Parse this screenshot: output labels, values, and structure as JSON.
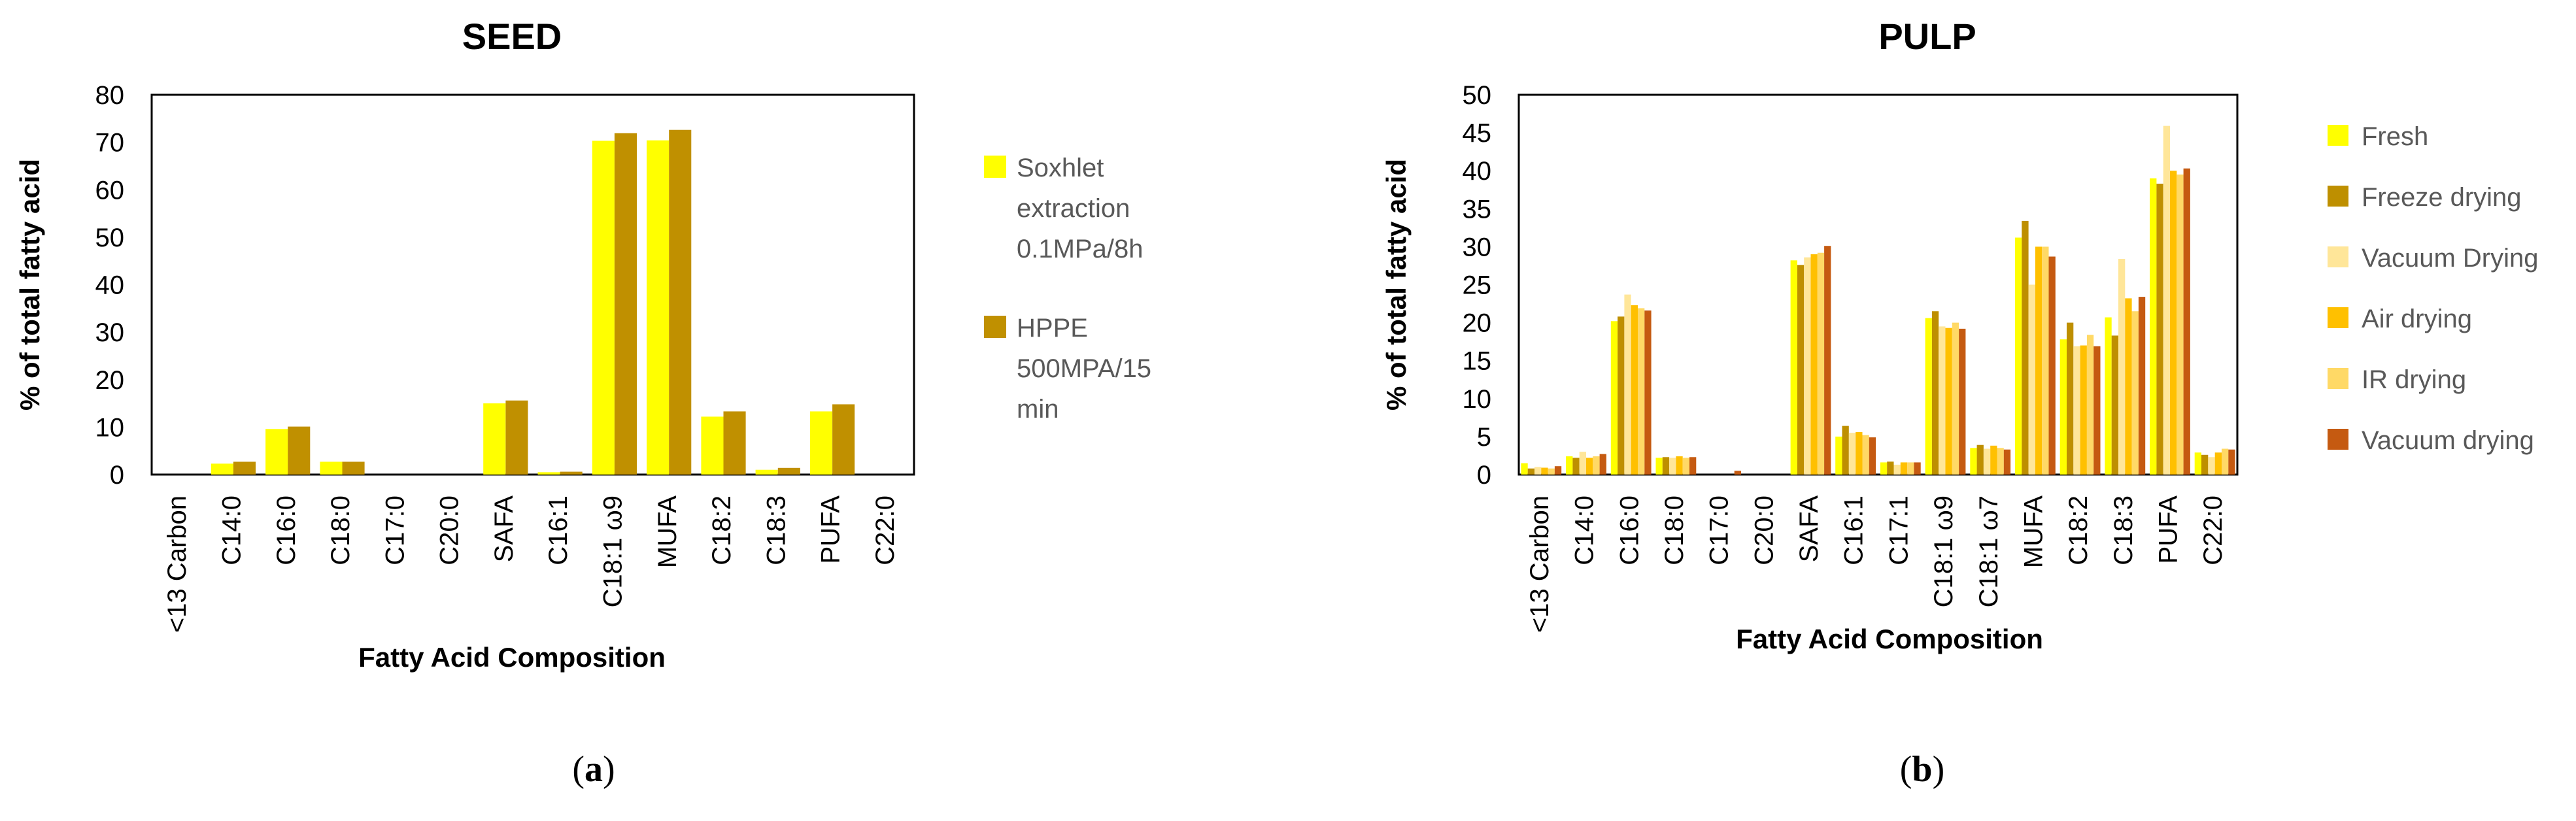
{
  "chart_data": [
    {
      "type": "bar",
      "title": "SEED",
      "xlabel": "Fatty Acid Composition",
      "ylabel": "% of total fatty acid",
      "ylim": [
        0,
        80
      ],
      "yticks": [
        0,
        10,
        20,
        30,
        40,
        50,
        60,
        70,
        80
      ],
      "grid": false,
      "legend_position": "right",
      "categories": [
        "<13 Carbon",
        "C14:0",
        "C16:0",
        "C18:0",
        "C17:0",
        "C20:0",
        "SAFA",
        "C16:1",
        "C18:1 ω9",
        "MUFA",
        "C18:2",
        "C18:3",
        "PUFA",
        "C22:0"
      ],
      "series": [
        {
          "name": "Soxhlet extraction 0.1MPa/8h",
          "color": "#FFFF00",
          "values": [
            0,
            2.3,
            9.6,
            2.7,
            0,
            0,
            15.0,
            0.5,
            70.3,
            70.4,
            12.2,
            1.0,
            13.3,
            0
          ]
        },
        {
          "name": "HPPE 500MPA/15 min",
          "color": "#C09000",
          "values": [
            0,
            2.7,
            10.1,
            2.7,
            0,
            0,
            15.6,
            0.6,
            71.9,
            72.6,
            13.3,
            1.4,
            14.8,
            0
          ]
        }
      ],
      "legend_lines": [
        [
          "Soxhlet",
          "extraction",
          "0.1MPa/8h"
        ],
        [
          "HPPE",
          "500MPA/15",
          "min"
        ]
      ],
      "panel_label": {
        "open": "(",
        "letter": "a",
        "close": ")"
      }
    },
    {
      "type": "bar",
      "title": "PULP",
      "xlabel": "Fatty Acid Composition",
      "ylabel": "% of total fatty acid",
      "ylim": [
        0,
        50
      ],
      "yticks": [
        0,
        5,
        10,
        15,
        20,
        25,
        30,
        35,
        40,
        45,
        50
      ],
      "grid": false,
      "legend_position": "right",
      "categories": [
        "<13 Carbon",
        "C14:0",
        "C16:0",
        "C18:0",
        "C17:0",
        "C20:0",
        "SAFA",
        "C16:1",
        "C17:1",
        "C18:1 ω9",
        "C18:1 ω7",
        "MUFA",
        "C18:2",
        "C18:3",
        "PUFA",
        "C22:0"
      ],
      "series": [
        {
          "name": "Fresh",
          "color": "#FFFF00",
          "values": [
            1.5,
            2.4,
            20.2,
            2.2,
            0,
            0,
            28.2,
            5.0,
            1.6,
            20.6,
            3.5,
            31.2,
            17.8,
            20.7,
            39.0,
            2.9
          ]
        },
        {
          "name": "Freeze drying",
          "color": "#BE8F00",
          "values": [
            0.8,
            2.2,
            20.8,
            2.3,
            0,
            0,
            27.6,
            6.4,
            1.7,
            21.5,
            3.9,
            33.4,
            20.0,
            18.3,
            38.3,
            2.6
          ]
        },
        {
          "name": "Vacuum Drying",
          "color": "#FFE699",
          "values": [
            1.0,
            3.0,
            23.7,
            2.2,
            0,
            0,
            28.6,
            5.5,
            1.3,
            19.5,
            3.4,
            25.0,
            16.9,
            28.4,
            45.9,
            2.3
          ]
        },
        {
          "name": "Air drying",
          "color": "#FFC000",
          "values": [
            0.9,
            2.2,
            22.3,
            2.4,
            0,
            0,
            29.0,
            5.6,
            1.6,
            19.3,
            3.8,
            30.0,
            17.0,
            23.2,
            40.0,
            2.9
          ]
        },
        {
          "name": "IR drying",
          "color": "#FFD966",
          "values": [
            0.8,
            2.4,
            21.9,
            2.2,
            0,
            0,
            29.2,
            5.2,
            1.6,
            20.0,
            3.5,
            30.0,
            18.4,
            21.5,
            39.5,
            3.4
          ]
        },
        {
          "name": "Vacuum drying",
          "color": "#C55A11",
          "values": [
            1.1,
            2.7,
            21.6,
            2.3,
            0.5,
            0,
            30.1,
            4.9,
            1.6,
            19.2,
            3.3,
            28.7,
            16.9,
            23.4,
            40.3,
            3.3
          ]
        }
      ],
      "panel_label": {
        "open": "(",
        "letter": "b",
        "close": ")"
      }
    }
  ]
}
